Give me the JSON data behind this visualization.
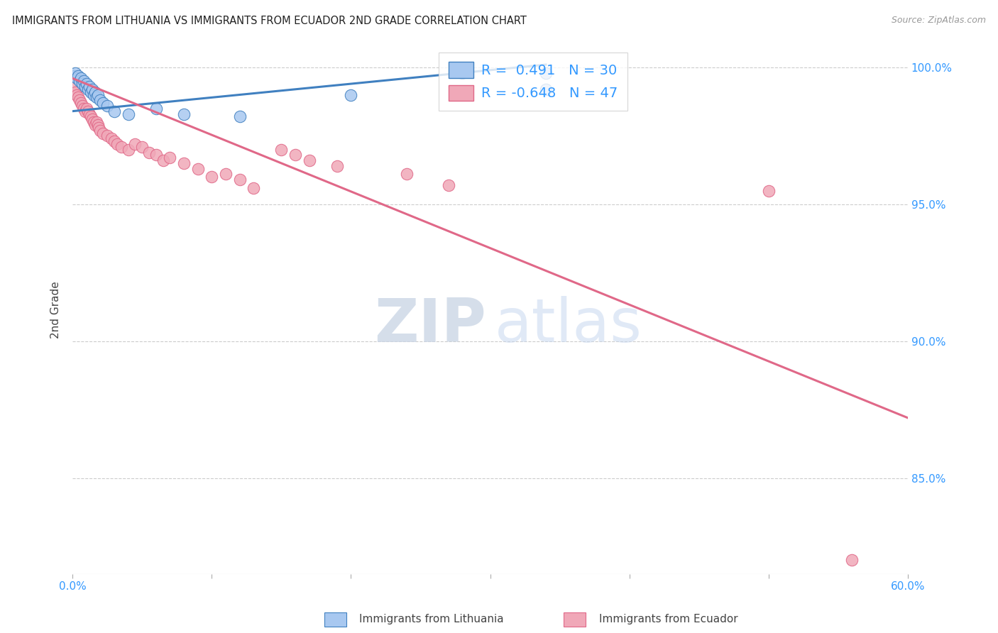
{
  "title": "IMMIGRANTS FROM LITHUANIA VS IMMIGRANTS FROM ECUADOR 2ND GRADE CORRELATION CHART",
  "source": "Source: ZipAtlas.com",
  "ylabel": "2nd Grade",
  "yticks": [
    "100.0%",
    "95.0%",
    "90.0%",
    "85.0%"
  ],
  "ytick_values": [
    1.0,
    0.95,
    0.9,
    0.85
  ],
  "xlim": [
    0.0,
    0.6
  ],
  "ylim": [
    0.815,
    1.008
  ],
  "blue_color": "#a8c8f0",
  "pink_color": "#f0a8b8",
  "blue_line_color": "#4080c0",
  "pink_line_color": "#e06888",
  "r_blue": "0.491",
  "n_blue": "30",
  "r_pink": "-0.648",
  "n_pink": "47",
  "legend_color": "#3399ff",
  "blue_scatter": [
    [
      0.001,
      0.997
    ],
    [
      0.002,
      0.998
    ],
    [
      0.003,
      0.996
    ],
    [
      0.004,
      0.997
    ],
    [
      0.005,
      0.995
    ],
    [
      0.006,
      0.996
    ],
    [
      0.007,
      0.994
    ],
    [
      0.008,
      0.995
    ],
    [
      0.009,
      0.993
    ],
    [
      0.01,
      0.994
    ],
    [
      0.011,
      0.992
    ],
    [
      0.012,
      0.993
    ],
    [
      0.013,
      0.991
    ],
    [
      0.014,
      0.992
    ],
    [
      0.015,
      0.99
    ],
    [
      0.016,
      0.991
    ],
    [
      0.017,
      0.989
    ],
    [
      0.018,
      0.99
    ],
    [
      0.02,
      0.988
    ],
    [
      0.022,
      0.987
    ],
    [
      0.025,
      0.986
    ],
    [
      0.03,
      0.984
    ],
    [
      0.04,
      0.983
    ],
    [
      0.06,
      0.985
    ],
    [
      0.08,
      0.983
    ],
    [
      0.12,
      0.982
    ],
    [
      0.2,
      0.99
    ],
    [
      0.28,
      0.998
    ],
    [
      0.34,
      0.992
    ],
    [
      0.34,
      0.998
    ]
  ],
  "pink_scatter": [
    [
      0.001,
      0.993
    ],
    [
      0.002,
      0.991
    ],
    [
      0.003,
      0.99
    ],
    [
      0.004,
      0.989
    ],
    [
      0.005,
      0.988
    ],
    [
      0.006,
      0.987
    ],
    [
      0.007,
      0.986
    ],
    [
      0.008,
      0.985
    ],
    [
      0.009,
      0.984
    ],
    [
      0.01,
      0.985
    ],
    [
      0.011,
      0.984
    ],
    [
      0.012,
      0.983
    ],
    [
      0.013,
      0.982
    ],
    [
      0.014,
      0.981
    ],
    [
      0.015,
      0.98
    ],
    [
      0.016,
      0.979
    ],
    [
      0.017,
      0.98
    ],
    [
      0.018,
      0.979
    ],
    [
      0.019,
      0.978
    ],
    [
      0.02,
      0.977
    ],
    [
      0.022,
      0.976
    ],
    [
      0.025,
      0.975
    ],
    [
      0.028,
      0.974
    ],
    [
      0.03,
      0.973
    ],
    [
      0.032,
      0.972
    ],
    [
      0.035,
      0.971
    ],
    [
      0.04,
      0.97
    ],
    [
      0.045,
      0.972
    ],
    [
      0.05,
      0.971
    ],
    [
      0.055,
      0.969
    ],
    [
      0.06,
      0.968
    ],
    [
      0.065,
      0.966
    ],
    [
      0.07,
      0.967
    ],
    [
      0.08,
      0.965
    ],
    [
      0.09,
      0.963
    ],
    [
      0.1,
      0.96
    ],
    [
      0.11,
      0.961
    ],
    [
      0.12,
      0.959
    ],
    [
      0.13,
      0.956
    ],
    [
      0.15,
      0.97
    ],
    [
      0.16,
      0.968
    ],
    [
      0.17,
      0.966
    ],
    [
      0.19,
      0.964
    ],
    [
      0.24,
      0.961
    ],
    [
      0.27,
      0.957
    ],
    [
      0.5,
      0.955
    ],
    [
      0.56,
      0.82
    ]
  ],
  "blue_trendline": [
    [
      0.0,
      0.984
    ],
    [
      0.34,
      1.001
    ]
  ],
  "pink_trendline": [
    [
      0.0,
      0.996
    ],
    [
      0.6,
      0.872
    ]
  ]
}
